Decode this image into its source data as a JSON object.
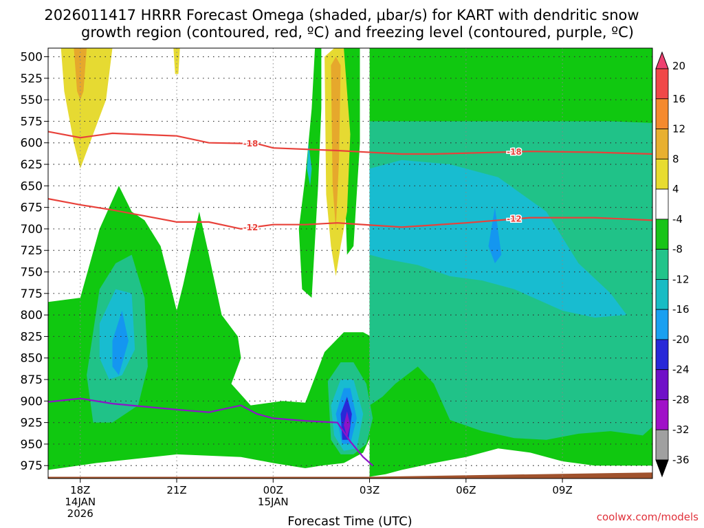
{
  "chart_data": {
    "type": "heatmap",
    "title_line1": "2026011417 HRRR Forecast Omega (shaded, μbar/s) for KART with dendritic snow",
    "title_line2": "growth region (contoured, red, ºC) and freezing level (contoured, purple, ºC)",
    "xlabel": "Forecast Time (UTC)",
    "source": "coolwx.com/models",
    "y_ticks": [
      "500",
      "525",
      "550",
      "575",
      "600",
      "625",
      "650",
      "675",
      "700",
      "725",
      "750",
      "775",
      "800",
      "825",
      "850",
      "875",
      "900",
      "925",
      "950",
      "975"
    ],
    "y_range": [
      490,
      990
    ],
    "x_hours_range": [
      -1.0,
      17.8
    ],
    "x_ticks": [
      {
        "hour": 0,
        "line1": "18Z",
        "line2": "14JAN",
        "line3": "2026"
      },
      {
        "hour": 3,
        "line1": "21Z",
        "line2": "",
        "line3": ""
      },
      {
        "hour": 6,
        "line1": "00Z",
        "line2": "15JAN",
        "line3": ""
      },
      {
        "hour": 9,
        "line1": "03Z",
        "line2": "",
        "line3": ""
      },
      {
        "hour": 12,
        "line1": "06Z",
        "line2": "",
        "line3": ""
      },
      {
        "hour": 15,
        "line1": "09Z",
        "line2": "",
        "line3": ""
      }
    ],
    "colorbar": {
      "labels": [
        "20",
        "16",
        "12",
        "8",
        "4",
        "-4",
        "-8",
        "-12",
        "-16",
        "-20",
        "-24",
        "-28",
        "-32",
        "-36"
      ],
      "colors": [
        "#ee4070",
        "#f04848",
        "#f58a2e",
        "#e8b030",
        "#e8dc30",
        "#ffffff",
        "#18c418",
        "#22c48a",
        "#18bcc4",
        "#1aa0f0",
        "#2828d8",
        "#7010c8",
        "#a010c8",
        "#a0a0a0",
        "#000000"
      ]
    },
    "shading": {
      "green": "#10c810",
      "teal": "#20c288",
      "cyan": "#18bcd0",
      "blue": "#1496f0",
      "darkblue": "#2828d8",
      "purple": "#8c14c8",
      "yellow": "#e6da32",
      "orange": "#e6a82c",
      "ground": "#a0522d"
    },
    "dgz_contours": [
      {
        "label": "-18",
        "color": "#e8413a",
        "points": [
          [
            -1.0,
            587
          ],
          [
            0,
            594
          ],
          [
            1,
            589
          ],
          [
            3,
            592
          ],
          [
            4,
            600
          ],
          [
            5.5,
            601
          ],
          [
            6,
            606
          ],
          [
            8,
            609
          ],
          [
            10,
            613
          ],
          [
            11,
            613
          ],
          [
            14,
            610
          ],
          [
            16,
            611
          ],
          [
            17.8,
            613
          ]
        ]
      },
      {
        "label": "-12",
        "color": "#e8413a",
        "points": [
          [
            -1.0,
            665
          ],
          [
            0,
            672
          ],
          [
            1,
            678
          ],
          [
            2,
            685
          ],
          [
            3,
            692
          ],
          [
            4,
            692
          ],
          [
            5,
            700
          ],
          [
            6,
            695
          ],
          [
            7,
            695
          ],
          [
            8,
            693
          ],
          [
            10,
            698
          ],
          [
            12,
            693
          ],
          [
            14,
            687
          ],
          [
            16,
            687
          ],
          [
            17.8,
            690
          ]
        ]
      }
    ],
    "freezing_level": {
      "color": "#8c14c8",
      "points": [
        [
          -1.0,
          901
        ],
        [
          0,
          897
        ],
        [
          1,
          903
        ],
        [
          3,
          910
        ],
        [
          4,
          913
        ],
        [
          5,
          905
        ],
        [
          5.5,
          915
        ],
        [
          6,
          920
        ],
        [
          7,
          923
        ],
        [
          8,
          925
        ],
        [
          8.4,
          947
        ],
        [
          8.8,
          965
        ],
        [
          9.1,
          975
        ]
      ]
    }
  }
}
